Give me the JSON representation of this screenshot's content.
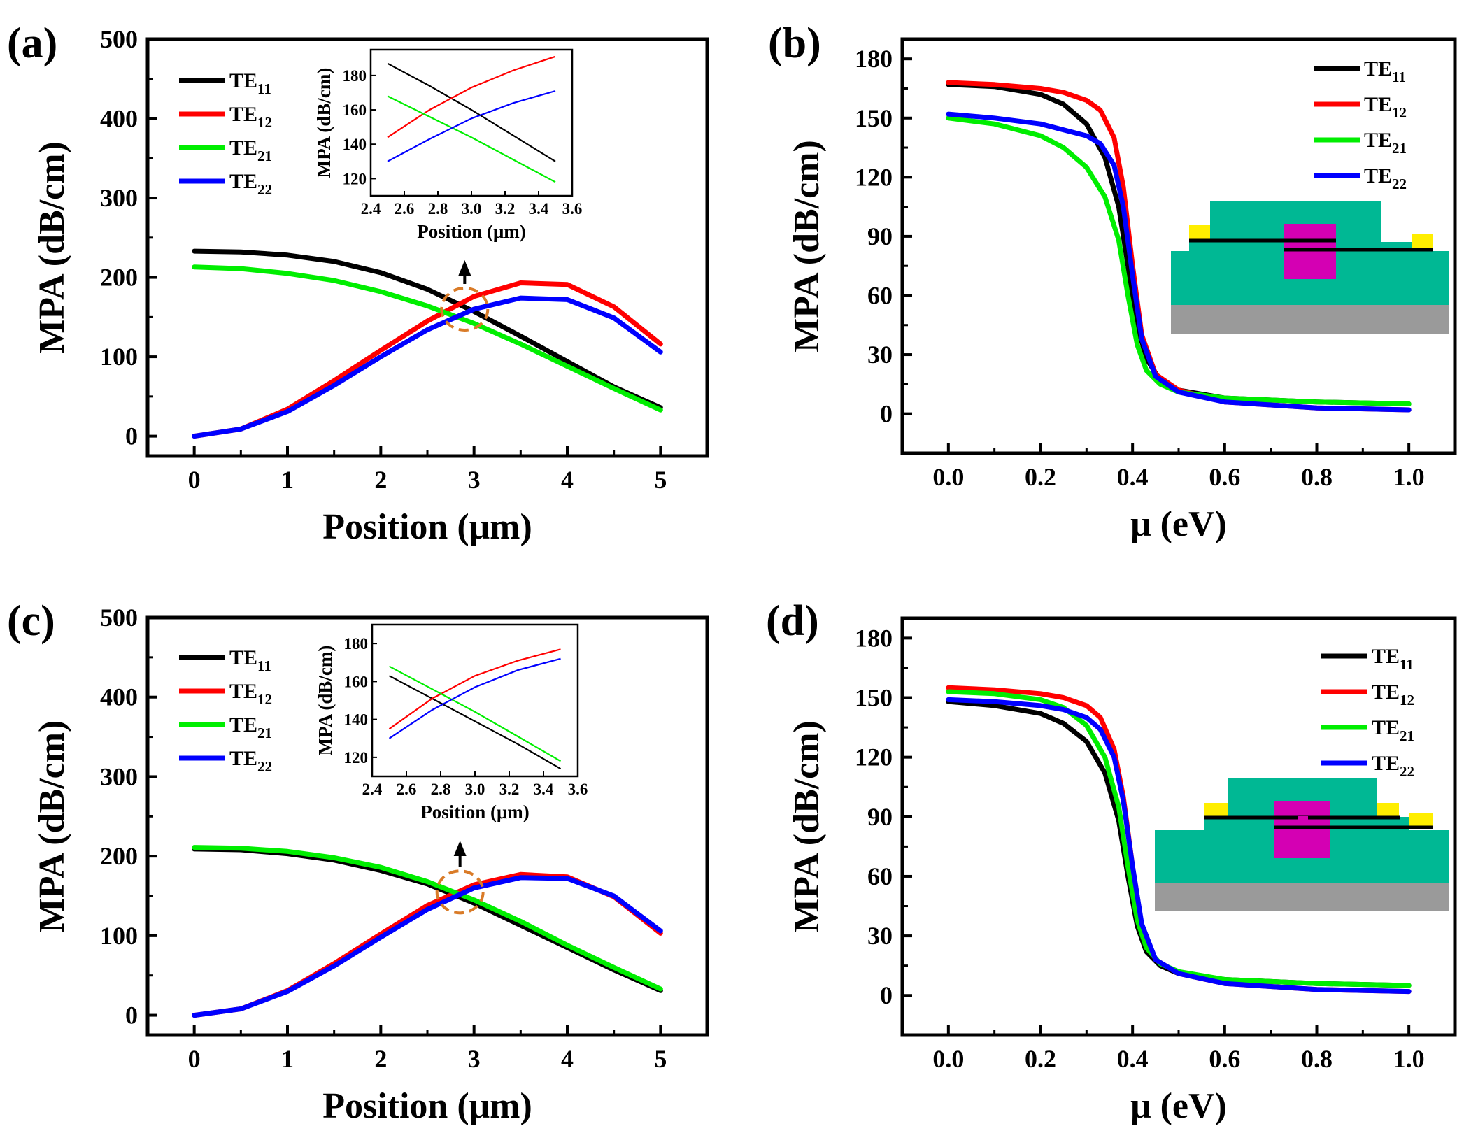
{
  "colors": {
    "TE11": "#000000",
    "TE12": "#ff0000",
    "TE21": "#00ee00",
    "TE22": "#0000ff",
    "annotation": "#d97b28",
    "cladding": "#00b894",
    "graphene": "#000000",
    "core": "#d400b3",
    "electrode": "#ffee00",
    "substrate": "#9a9a9a"
  },
  "chart_data": [
    {
      "id": "a",
      "panel_label": "(a)",
      "type": "line",
      "xlabel": "Position (μm)",
      "ylabel": "MPA (dB/cm)",
      "xlim": [
        -0.5,
        5.5
      ],
      "ylim": [
        -25,
        500
      ],
      "xticks": [
        0,
        1,
        2,
        3,
        4,
        5
      ],
      "yticks": [
        0,
        100,
        200,
        300,
        400,
        500
      ],
      "legend_position": "top-left",
      "series": [
        {
          "name": "TE11",
          "base": "TE",
          "sub": "11",
          "color": "#000000",
          "x": [
            0,
            0.5,
            1,
            1.5,
            2,
            2.5,
            3,
            3.5,
            4,
            4.5,
            5
          ],
          "y": [
            233,
            232,
            228,
            220,
            206,
            185,
            157,
            126,
            94,
            62,
            36
          ]
        },
        {
          "name": "TE12",
          "base": "TE",
          "sub": "12",
          "color": "#ff0000",
          "x": [
            0,
            0.5,
            1,
            1.5,
            2,
            2.5,
            3,
            3.5,
            4,
            4.5,
            5
          ],
          "y": [
            0,
            9,
            34,
            70,
            108,
            145,
            176,
            193,
            191,
            163,
            116
          ]
        },
        {
          "name": "TE21",
          "base": "TE",
          "sub": "21",
          "color": "#00ee00",
          "x": [
            0,
            0.5,
            1,
            1.5,
            2,
            2.5,
            3,
            3.5,
            4,
            4.5,
            5
          ],
          "y": [
            213,
            211,
            205,
            196,
            182,
            164,
            142,
            116,
            88,
            60,
            33
          ]
        },
        {
          "name": "TE22",
          "base": "TE",
          "sub": "22",
          "color": "#0000ff",
          "x": [
            0,
            0.5,
            1,
            1.5,
            2,
            2.5,
            3,
            3.5,
            4,
            4.5,
            5
          ],
          "y": [
            0,
            9,
            31,
            64,
            100,
            134,
            160,
            174,
            172,
            149,
            106
          ]
        }
      ],
      "inset": {
        "xlabel": "Position (μm)",
        "ylabel": "MPA (dB/cm)",
        "xlim": [
          2.4,
          3.6
        ],
        "ylim": [
          110,
          195
        ],
        "xticks": [
          2.4,
          2.6,
          2.8,
          3.0,
          3.2,
          3.4,
          3.6
        ],
        "xtick_labels": [
          "2.4",
          "2.6",
          "2.8",
          "3.0",
          "3.2",
          "3.4",
          "3.6"
        ],
        "yticks": [
          120,
          140,
          160,
          180
        ],
        "series": [
          {
            "name": "TE11",
            "color": "#000000",
            "x": [
              2.5,
              2.75,
              3.0,
              3.25,
              3.5
            ],
            "y": [
              187,
              174,
              160,
              145,
              130
            ]
          },
          {
            "name": "TE12",
            "color": "#ff0000",
            "x": [
              2.5,
              2.75,
              3.0,
              3.25,
              3.5
            ],
            "y": [
              144,
              160,
              173,
              183,
              191
            ]
          },
          {
            "name": "TE21",
            "color": "#00ee00",
            "x": [
              2.5,
              2.75,
              3.0,
              3.25,
              3.5
            ],
            "y": [
              168,
              156,
              144,
              131,
              118
            ]
          },
          {
            "name": "TE22",
            "color": "#0000ff",
            "x": [
              2.5,
              2.75,
              3.0,
              3.25,
              3.5
            ],
            "y": [
              130,
              143,
              155,
              164,
              171
            ]
          }
        ]
      },
      "highlight": {
        "center": [
          2.9,
          160
        ]
      }
    },
    {
      "id": "b",
      "panel_label": "(b)",
      "type": "line",
      "xlabel": "μ (eV)",
      "ylabel": "MPA (dB/cm)",
      "xlim": [
        -0.1,
        1.1
      ],
      "ylim": [
        -20,
        190
      ],
      "xticks": [
        0.0,
        0.2,
        0.4,
        0.6,
        0.8,
        1.0
      ],
      "xtick_labels": [
        "0.0",
        "0.2",
        "0.4",
        "0.6",
        "0.8",
        "1.0"
      ],
      "yticks": [
        0,
        30,
        60,
        90,
        120,
        150,
        180
      ],
      "legend_position": "top-right",
      "series": [
        {
          "name": "TE11",
          "base": "TE",
          "sub": "11",
          "color": "#000000",
          "x": [
            0,
            0.1,
            0.2,
            0.25,
            0.3,
            0.34,
            0.37,
            0.39,
            0.41,
            0.43,
            0.46,
            0.5,
            0.6,
            0.8,
            1.0
          ],
          "y": [
            167,
            166,
            162,
            157,
            147,
            130,
            105,
            75,
            45,
            28,
            17,
            12,
            8,
            6,
            5
          ]
        },
        {
          "name": "TE12",
          "base": "TE",
          "sub": "12",
          "color": "#ff0000",
          "x": [
            0,
            0.1,
            0.2,
            0.25,
            0.3,
            0.33,
            0.36,
            0.38,
            0.4,
            0.42,
            0.45,
            0.5,
            0.6,
            0.8,
            1.0
          ],
          "y": [
            168,
            167,
            165,
            163,
            159,
            154,
            140,
            115,
            75,
            40,
            20,
            12,
            6,
            3,
            2
          ]
        },
        {
          "name": "TE21",
          "base": "TE",
          "sub": "21",
          "color": "#00ee00",
          "x": [
            0,
            0.1,
            0.2,
            0.25,
            0.3,
            0.34,
            0.37,
            0.39,
            0.41,
            0.43,
            0.46,
            0.5,
            0.6,
            0.8,
            1.0
          ],
          "y": [
            150,
            147,
            141,
            135,
            125,
            110,
            88,
            60,
            35,
            22,
            15,
            11,
            8,
            6,
            5
          ]
        },
        {
          "name": "TE22",
          "base": "TE",
          "sub": "22",
          "color": "#0000ff",
          "x": [
            0,
            0.1,
            0.2,
            0.25,
            0.3,
            0.33,
            0.36,
            0.38,
            0.4,
            0.42,
            0.45,
            0.5,
            0.6,
            0.8,
            1.0
          ],
          "y": [
            152,
            150,
            147,
            144,
            141,
            137,
            126,
            105,
            70,
            38,
            19,
            11,
            6,
            3,
            2
          ]
        }
      ]
    },
    {
      "id": "c",
      "panel_label": "(c)",
      "type": "line",
      "xlabel": "Position (μm)",
      "ylabel": "MPA (dB/cm)",
      "xlim": [
        -0.5,
        5.5
      ],
      "ylim": [
        -25,
        500
      ],
      "xticks": [
        0,
        1,
        2,
        3,
        4,
        5
      ],
      "yticks": [
        0,
        100,
        200,
        300,
        400,
        500
      ],
      "legend_position": "top-left",
      "series": [
        {
          "name": "TE11",
          "base": "TE",
          "sub": "11",
          "color": "#000000",
          "x": [
            0,
            0.5,
            1,
            1.5,
            2,
            2.5,
            3,
            3.5,
            4,
            4.5,
            5
          ],
          "y": [
            209,
            208,
            203,
            195,
            182,
            165,
            141,
            113,
            85,
            57,
            31
          ]
        },
        {
          "name": "TE12",
          "base": "TE",
          "sub": "12",
          "color": "#ff0000",
          "x": [
            0,
            0.5,
            1,
            1.5,
            2,
            2.5,
            3,
            3.5,
            4,
            4.5,
            5
          ],
          "y": [
            0,
            8,
            31,
            65,
            102,
            138,
            164,
            177,
            174,
            149,
            103
          ]
        },
        {
          "name": "TE21",
          "base": "TE",
          "sub": "21",
          "color": "#00ee00",
          "x": [
            0,
            0.5,
            1,
            1.5,
            2,
            2.5,
            3,
            3.5,
            4,
            4.5,
            5
          ],
          "y": [
            211,
            210,
            206,
            198,
            186,
            168,
            145,
            118,
            88,
            60,
            33
          ]
        },
        {
          "name": "TE22",
          "base": "TE",
          "sub": "22",
          "color": "#0000ff",
          "x": [
            0,
            0.5,
            1,
            1.5,
            2,
            2.5,
            3,
            3.5,
            4,
            4.5,
            5
          ],
          "y": [
            0,
            8,
            30,
            62,
            98,
            133,
            160,
            173,
            172,
            150,
            106
          ]
        }
      ],
      "inset": {
        "xlabel": "Position (μm)",
        "ylabel": "MPA (dB/cm)",
        "xlim": [
          2.4,
          3.6
        ],
        "ylim": [
          110,
          190
        ],
        "xticks": [
          2.4,
          2.6,
          2.8,
          3.0,
          3.2,
          3.4,
          3.6
        ],
        "xtick_labels": [
          "2.4",
          "2.6",
          "2.8",
          "3.0",
          "3.2",
          "3.4",
          "3.6"
        ],
        "yticks": [
          120,
          140,
          160,
          180
        ],
        "series": [
          {
            "name": "TE11",
            "color": "#000000",
            "x": [
              2.5,
              2.75,
              3.0,
              3.25,
              3.5
            ],
            "y": [
              163,
              151,
              139,
              127,
              114
            ]
          },
          {
            "name": "TE12",
            "color": "#ff0000",
            "x": [
              2.5,
              2.75,
              3.0,
              3.25,
              3.5
            ],
            "y": [
              135,
              151,
              163,
              171,
              177
            ]
          },
          {
            "name": "TE21",
            "color": "#00ee00",
            "x": [
              2.5,
              2.75,
              3.0,
              3.25,
              3.5
            ],
            "y": [
              168,
              156,
              144,
              131,
              118
            ]
          },
          {
            "name": "TE22",
            "color": "#0000ff",
            "x": [
              2.5,
              2.75,
              3.0,
              3.25,
              3.5
            ],
            "y": [
              130,
              145,
              157,
              166,
              172
            ]
          }
        ]
      },
      "highlight": {
        "center": [
          2.85,
          155
        ]
      }
    },
    {
      "id": "d",
      "panel_label": "(d)",
      "type": "line",
      "xlabel": "μ (eV)",
      "ylabel": "MPA (dB/cm)",
      "xlim": [
        -0.1,
        1.1
      ],
      "ylim": [
        -20,
        190
      ],
      "xticks": [
        0.0,
        0.2,
        0.4,
        0.6,
        0.8,
        1.0
      ],
      "xtick_labels": [
        "0.0",
        "0.2",
        "0.4",
        "0.6",
        "0.8",
        "1.0"
      ],
      "yticks": [
        0,
        30,
        60,
        90,
        120,
        150,
        180
      ],
      "legend_position": "top-right",
      "series": [
        {
          "name": "TE11",
          "base": "TE",
          "sub": "11",
          "color": "#000000",
          "x": [
            0,
            0.1,
            0.2,
            0.25,
            0.3,
            0.34,
            0.37,
            0.39,
            0.41,
            0.43,
            0.46,
            0.5,
            0.6,
            0.8,
            1.0
          ],
          "y": [
            148,
            146,
            142,
            137,
            128,
            112,
            88,
            60,
            35,
            22,
            15,
            11,
            8,
            6,
            5
          ]
        },
        {
          "name": "TE12",
          "base": "TE",
          "sub": "12",
          "color": "#ff0000",
          "x": [
            0,
            0.1,
            0.2,
            0.25,
            0.3,
            0.33,
            0.36,
            0.38,
            0.4,
            0.42,
            0.45,
            0.5,
            0.6,
            0.8,
            1.0
          ],
          "y": [
            155,
            154,
            152,
            150,
            146,
            140,
            124,
            100,
            65,
            35,
            18,
            11,
            6,
            3,
            2
          ]
        },
        {
          "name": "TE21",
          "base": "TE",
          "sub": "21",
          "color": "#00ee00",
          "x": [
            0,
            0.1,
            0.2,
            0.25,
            0.3,
            0.34,
            0.37,
            0.39,
            0.41,
            0.43,
            0.46,
            0.5,
            0.6,
            0.8,
            1.0
          ],
          "y": [
            153,
            152,
            149,
            145,
            136,
            120,
            95,
            65,
            38,
            24,
            16,
            12,
            8,
            6,
            5
          ]
        },
        {
          "name": "TE22",
          "base": "TE",
          "sub": "22",
          "color": "#0000ff",
          "x": [
            0,
            0.1,
            0.2,
            0.25,
            0.3,
            0.33,
            0.36,
            0.38,
            0.4,
            0.42,
            0.45,
            0.5,
            0.6,
            0.8,
            1.0
          ],
          "y": [
            149,
            148,
            146,
            144,
            140,
            134,
            120,
            98,
            65,
            36,
            18,
            11,
            6,
            3,
            2
          ]
        }
      ]
    }
  ]
}
